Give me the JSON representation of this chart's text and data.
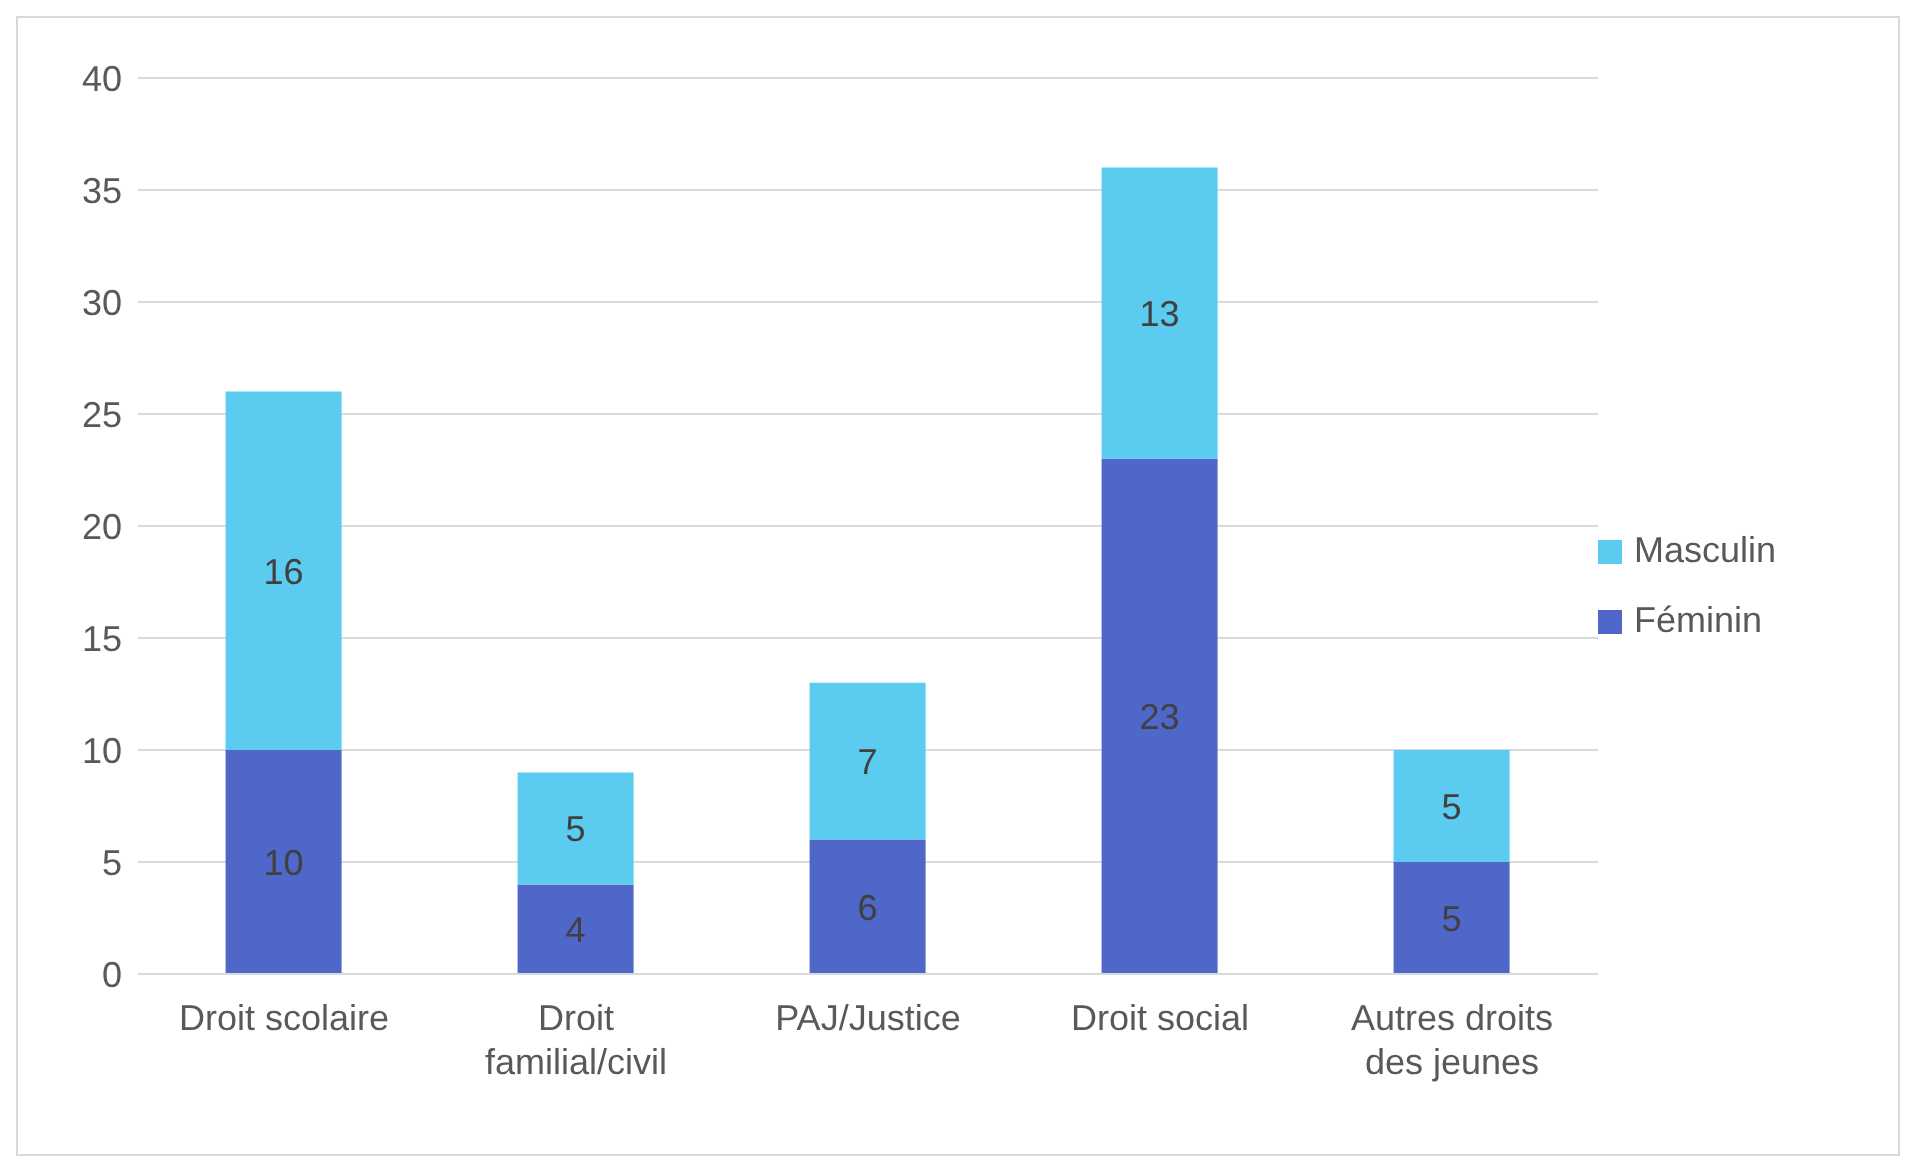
{
  "chart_data": {
    "type": "bar",
    "stacked": true,
    "categories": [
      "Droit scolaire",
      "Droit familial/civil",
      "PAJ/Justice",
      "Droit social",
      "Autres droits des jeunes"
    ],
    "series": [
      {
        "name": "Féminin",
        "color": "#4f67c8",
        "values": [
          10,
          4,
          6,
          23,
          5
        ]
      },
      {
        "name": "Masculin",
        "color": "#5bcbf0",
        "values": [
          16,
          5,
          7,
          13,
          5
        ]
      }
    ],
    "ylim": [
      0,
      40
    ],
    "yticks": [
      0,
      5,
      10,
      15,
      20,
      25,
      30,
      35,
      40
    ],
    "grid": "y",
    "legend": "right",
    "data_labels": true
  }
}
